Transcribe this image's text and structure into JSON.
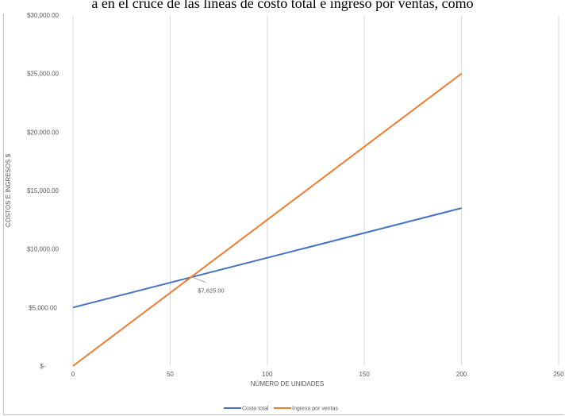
{
  "page": {
    "top_text": "a en el cruce de las líneas de costo total e ingreso por ventas, como"
  },
  "chart_data": {
    "type": "line",
    "title": "",
    "xlabel": "NÚMERO DE UNIDADES",
    "ylabel": "COSTOS E INGRESOS $",
    "xlim": [
      0,
      250
    ],
    "ylim": [
      0,
      30000
    ],
    "x_ticks": [
      0,
      50,
      100,
      150,
      200,
      250
    ],
    "x_tick_labels": [
      "0",
      "50",
      "100",
      "150",
      "200",
      "250"
    ],
    "y_ticks": [
      0,
      5000,
      10000,
      15000,
      20000,
      25000,
      30000
    ],
    "y_tick_labels": [
      "$-",
      "$5,000.00",
      "$10,000.00",
      "$15,000.00",
      "$20,000.00",
      "$25,000.00",
      "$30,000.00"
    ],
    "grid": "vertical",
    "legend_position": "bottom",
    "series": [
      {
        "name": "Costo total",
        "color": "#4472C4",
        "x": [
          0,
          200
        ],
        "y": [
          5000,
          13500
        ]
      },
      {
        "name": "Ingreso por ventas",
        "color": "#ED7D31",
        "x": [
          0,
          200
        ],
        "y": [
          0,
          25000
        ]
      }
    ],
    "annotation": {
      "x": 61,
      "y": 7625,
      "label": "$7,625.00"
    }
  }
}
